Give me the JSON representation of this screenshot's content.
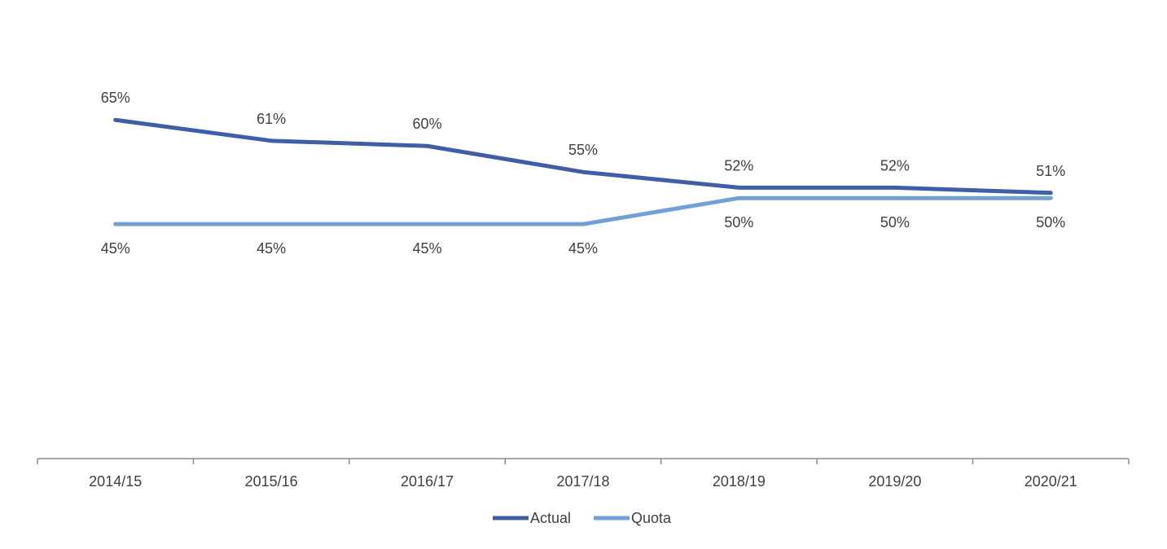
{
  "chart_data": {
    "type": "line",
    "categories": [
      "2014/15",
      "2015/16",
      "2016/17",
      "2017/18",
      "2018/19",
      "2019/20",
      "2020/21"
    ],
    "series": [
      {
        "name": "Actual",
        "color": "#3E5FA6",
        "values": [
          65,
          61,
          60,
          55,
          52,
          52,
          51
        ],
        "labels": [
          "65%",
          "61%",
          "60%",
          "55%",
          "52%",
          "52%",
          "51%"
        ],
        "label_position": "above"
      },
      {
        "name": "Quota",
        "color": "#6FA0D6",
        "values": [
          45,
          45,
          45,
          45,
          50,
          50,
          50
        ],
        "labels": [
          "45%",
          "45%",
          "45%",
          "45%",
          "50%",
          "50%",
          "50%"
        ],
        "label_position": "below"
      }
    ],
    "ylim": [
      0,
      80
    ],
    "grid": false,
    "legend": "bottom",
    "title": "",
    "xlabel": "",
    "ylabel": ""
  }
}
